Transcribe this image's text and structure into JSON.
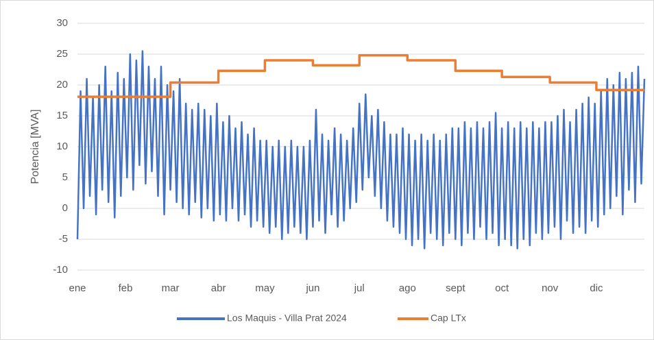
{
  "chart_data": {
    "type": "line",
    "y_label": "Potencia [MVA]",
    "xlim": [
      0,
      366
    ],
    "xticks": [
      {
        "value": 0,
        "label": "ene"
      },
      {
        "value": 31,
        "label": "feb"
      },
      {
        "value": 60,
        "label": "mar"
      },
      {
        "value": 91,
        "label": "abr"
      },
      {
        "value": 121,
        "label": "may"
      },
      {
        "value": 152,
        "label": "jun"
      },
      {
        "value": 182,
        "label": "jul"
      },
      {
        "value": 213,
        "label": "ago"
      },
      {
        "value": 244,
        "label": "sept"
      },
      {
        "value": 274,
        "label": "oct"
      },
      {
        "value": 305,
        "label": "nov"
      },
      {
        "value": 335,
        "label": "dic"
      }
    ],
    "ylim": [
      -10,
      30
    ],
    "yticks": [
      -10,
      -5,
      0,
      5,
      10,
      15,
      20,
      25,
      30
    ],
    "grid": true,
    "legend": "bottom",
    "series": [
      {
        "name": "Los Maquis - Villa Prat 2024",
        "color": "#4472c4",
        "x": [
          0,
          2,
          4,
          6,
          8,
          10,
          12,
          14,
          16,
          18,
          20,
          22,
          24,
          26,
          28,
          30,
          32,
          34,
          36,
          38,
          40,
          42,
          44,
          46,
          48,
          50,
          52,
          54,
          56,
          58,
          60,
          62,
          64,
          66,
          68,
          70,
          72,
          74,
          76,
          78,
          80,
          82,
          84,
          86,
          88,
          90,
          92,
          94,
          96,
          98,
          100,
          102,
          104,
          106,
          108,
          110,
          112,
          114,
          116,
          118,
          120,
          122,
          124,
          126,
          128,
          130,
          132,
          134,
          136,
          138,
          140,
          142,
          144,
          146,
          148,
          150,
          152,
          154,
          156,
          158,
          160,
          162,
          164,
          166,
          168,
          170,
          172,
          174,
          176,
          178,
          180,
          182,
          184,
          186,
          188,
          190,
          192,
          194,
          196,
          198,
          200,
          202,
          204,
          206,
          208,
          210,
          212,
          214,
          216,
          218,
          220,
          222,
          224,
          226,
          228,
          230,
          232,
          234,
          236,
          238,
          240,
          242,
          244,
          246,
          248,
          250,
          252,
          254,
          256,
          258,
          260,
          262,
          264,
          266,
          268,
          270,
          272,
          274,
          276,
          278,
          280,
          282,
          284,
          286,
          288,
          290,
          292,
          294,
          296,
          298,
          300,
          302,
          304,
          306,
          308,
          310,
          312,
          314,
          316,
          318,
          320,
          322,
          324,
          326,
          328,
          330,
          332,
          334,
          336,
          338,
          340,
          342,
          344,
          346,
          348,
          350,
          352,
          354,
          356,
          358,
          360,
          362,
          364,
          366
        ],
        "values": [
          -5,
          19,
          0,
          21,
          2,
          18,
          -1,
          20,
          3,
          23,
          1,
          19,
          -1.5,
          22,
          2,
          21,
          5,
          25,
          3,
          24,
          7,
          25.5,
          4,
          23,
          6,
          21,
          2,
          23,
          -1,
          20,
          3,
          19,
          1,
          21,
          0,
          17,
          -1,
          16,
          1,
          17,
          -1.5,
          16,
          0,
          15,
          -2,
          17,
          -1,
          14,
          -2,
          15,
          0,
          13,
          -2,
          14,
          -1,
          12,
          -3,
          13,
          -2,
          11,
          -3,
          11,
          -4,
          10,
          -3,
          11,
          -5,
          10,
          -4,
          11,
          -3,
          10,
          -4,
          10,
          -5,
          11,
          -3,
          16,
          -2,
          12,
          -4,
          11,
          -1,
          13,
          -3,
          12,
          -2,
          11,
          0,
          13,
          1,
          17,
          3,
          18.5,
          5,
          15,
          2,
          16,
          0,
          14,
          -2,
          12,
          -3,
          12,
          -4,
          13,
          -5,
          12,
          -6,
          11,
          -5,
          12,
          -6.5,
          11,
          -4,
          12,
          -5,
          11,
          -6,
          12,
          -4,
          13,
          -5,
          13,
          -6,
          14,
          -4,
          13,
          -5,
          14,
          -3,
          13,
          -5,
          14,
          -4,
          15.5,
          -6,
          13,
          -5,
          14,
          -6,
          13,
          -6.5,
          14,
          -5,
          13,
          -6,
          14,
          -4,
          13,
          -5,
          14,
          -4,
          14,
          -3,
          15,
          -5,
          16,
          -2,
          14,
          -4,
          16,
          -3,
          17,
          -4,
          18,
          -2,
          17,
          -3,
          19,
          -1,
          21,
          0,
          20,
          2,
          22,
          -1,
          21,
          3,
          22,
          1,
          23,
          4,
          21
        ]
      },
      {
        "name": "Cap LTx",
        "color": "#ed7d31",
        "x": [
          0,
          60,
          60,
          91,
          91,
          121,
          121,
          152,
          152,
          182,
          182,
          213,
          213,
          244,
          244,
          274,
          274,
          305,
          305,
          335,
          335,
          366
        ],
        "values": [
          18.1,
          18.1,
          20.4,
          20.4,
          22.3,
          22.3,
          24,
          24,
          23.2,
          23.2,
          24.8,
          24.8,
          24,
          24,
          22.3,
          22.3,
          21.3,
          21.3,
          20.4,
          20.4,
          19.2,
          19.2
        ]
      }
    ]
  }
}
